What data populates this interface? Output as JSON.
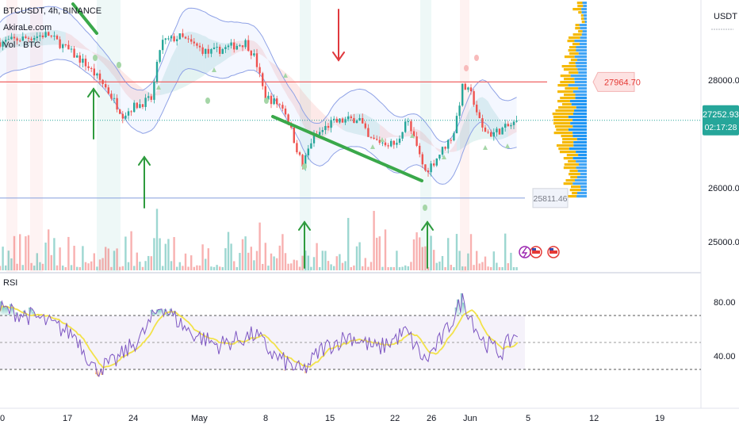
{
  "legend": {
    "symbol_line": "BTCUSDT, 4h, BINANCE",
    "source": "AkiraLe.com",
    "volume": "Vol · BTC"
  },
  "rsi_label": "RSI",
  "price_axis": {
    "currency": "USDT",
    "ticks": [
      "28000.00",
      "26000.00",
      "25000.00"
    ],
    "rsi_ticks": [
      "80.00",
      "40.00"
    ]
  },
  "badges": {
    "current_price": "27252.93",
    "countdown": "02:17:28",
    "resistance": "27964.70",
    "support": "25811.46"
  },
  "x_axis": {
    "ticks": [
      "0",
      "17",
      "24",
      "May",
      "8",
      "15",
      "22",
      "26",
      "Jun",
      "5",
      "12",
      "19"
    ]
  },
  "colors": {
    "up": "#26a69a",
    "down": "#ef5350",
    "resistance_line": "#f06464",
    "support_line": "#90a8e0",
    "rsi_line": "#7e57c2",
    "rsi_ma": "#f2e24a",
    "arrow_up": "#2e9b3e",
    "arrow_down": "#e0393e"
  },
  "chart_data": {
    "type": "candlestick",
    "symbol": "BTCUSDT",
    "interval": "4h",
    "exchange": "BINANCE",
    "price_ylim": [
      25000,
      28700
    ],
    "levels": {
      "resistance": 27964.7,
      "support": 25811.46,
      "last": 27252.93
    },
    "price_path": [
      {
        "date": "2023-04-10",
        "close": 28700
      },
      {
        "date": "2023-04-15",
        "close": 28850
      },
      {
        "date": "2023-04-19",
        "close": 28300
      },
      {
        "date": "2023-04-21",
        "close": 27900
      },
      {
        "date": "2023-04-23",
        "close": 27350
      },
      {
        "date": "2023-04-24",
        "close": 27500
      },
      {
        "date": "2023-04-26",
        "close": 27650
      },
      {
        "date": "2023-04-27",
        "close": 28700
      },
      {
        "date": "2023-04-29",
        "close": 28800
      },
      {
        "date": "2023-05-02",
        "close": 28500
      },
      {
        "date": "2023-05-06",
        "close": 28700
      },
      {
        "date": "2023-05-07",
        "close": 28400
      },
      {
        "date": "2023-05-08",
        "close": 27700
      },
      {
        "date": "2023-05-10",
        "close": 27500
      },
      {
        "date": "2023-05-12",
        "close": 26400
      },
      {
        "date": "2023-05-13",
        "close": 26900
      },
      {
        "date": "2023-05-15",
        "close": 27200
      },
      {
        "date": "2023-05-18",
        "close": 27300
      },
      {
        "date": "2023-05-19",
        "close": 26900
      },
      {
        "date": "2023-05-22",
        "close": 26800
      },
      {
        "date": "2023-05-23",
        "close": 27300
      },
      {
        "date": "2023-05-25",
        "close": 26300
      },
      {
        "date": "2023-05-26",
        "close": 26500
      },
      {
        "date": "2023-05-28",
        "close": 27000
      },
      {
        "date": "2023-05-29",
        "close": 27900
      },
      {
        "date": "2023-05-30",
        "close": 27700
      },
      {
        "date": "2023-05-31",
        "close": 27100
      },
      {
        "date": "2023-06-01",
        "close": 27000
      },
      {
        "date": "2023-06-03",
        "close": 27150
      },
      {
        "date": "2023-06-04",
        "close": 27252.93
      }
    ],
    "rsi_ylim": [
      20,
      90
    ],
    "rsi_band": [
      30,
      70
    ],
    "rsi_path": [
      {
        "date": "2023-04-10",
        "value": 75
      },
      {
        "date": "2023-04-14",
        "value": 68
      },
      {
        "date": "2023-04-18",
        "value": 55
      },
      {
        "date": "2023-04-20",
        "value": 30
      },
      {
        "date": "2023-04-22",
        "value": 35
      },
      {
        "date": "2023-04-25",
        "value": 55
      },
      {
        "date": "2023-04-27",
        "value": 78
      },
      {
        "date": "2023-04-30",
        "value": 58
      },
      {
        "date": "2023-05-03",
        "value": 48
      },
      {
        "date": "2023-05-07",
        "value": 56
      },
      {
        "date": "2023-05-09",
        "value": 40
      },
      {
        "date": "2023-05-12",
        "value": 28
      },
      {
        "date": "2023-05-14",
        "value": 45
      },
      {
        "date": "2023-05-17",
        "value": 55
      },
      {
        "date": "2023-05-20",
        "value": 45
      },
      {
        "date": "2023-05-23",
        "value": 58
      },
      {
        "date": "2023-05-25",
        "value": 36
      },
      {
        "date": "2023-05-27",
        "value": 55
      },
      {
        "date": "2023-05-29",
        "value": 82
      },
      {
        "date": "2023-05-31",
        "value": 52
      },
      {
        "date": "2023-06-02",
        "value": 42
      },
      {
        "date": "2023-06-04",
        "value": 60
      }
    ]
  }
}
